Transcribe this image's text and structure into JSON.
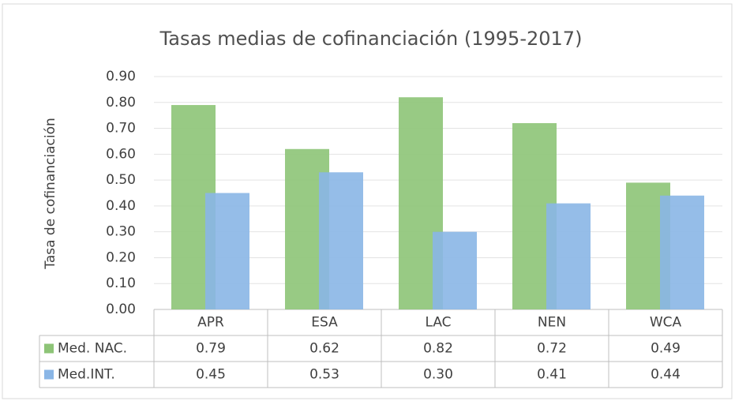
{
  "chart_data": {
    "type": "bar",
    "title": "Tasas medias de cofinanciación (1995-2017)",
    "y_label": "Tasa de cofinanciación",
    "categories": [
      "APR",
      "ESA",
      "LAC",
      "NEN",
      "WCA"
    ],
    "series": [
      {
        "name": "Med. NAC.",
        "color": "#8dc477",
        "values": [
          0.79,
          0.62,
          0.82,
          0.72,
          0.49
        ],
        "value_labels": [
          "0.79",
          "0.62",
          "0.82",
          "0.72",
          "0.49"
        ]
      },
      {
        "name": "Med.INT.",
        "color": "#8ab6e6",
        "values": [
          0.45,
          0.53,
          0.3,
          0.41,
          0.44
        ],
        "value_labels": [
          "0.45",
          "0.53",
          "0.30",
          "0.41",
          "0.44"
        ]
      }
    ],
    "ylim": [
      0,
      0.9
    ],
    "yticks": [
      {
        "value": 0,
        "label": "0.00"
      },
      {
        "value": 0.1,
        "label": "0.10"
      },
      {
        "value": 0.2,
        "label": "0.20"
      },
      {
        "value": 0.3,
        "label": "0.30"
      },
      {
        "value": 0.4,
        "label": "0.40"
      },
      {
        "value": 0.5,
        "label": "0.50"
      },
      {
        "value": 0.6,
        "label": "0.60"
      },
      {
        "value": 0.7,
        "label": "0.70"
      },
      {
        "value": 0.8,
        "label": "0.80"
      },
      {
        "value": 0.9,
        "label": "0.90"
      }
    ],
    "grid": true
  }
}
